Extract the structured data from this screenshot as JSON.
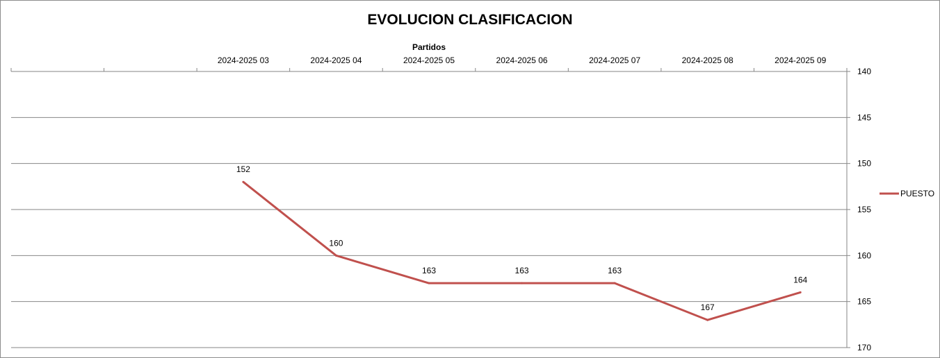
{
  "chart_data": {
    "type": "line",
    "title": "EVOLUCION CLASIFICACION",
    "xlabel": "Partidos",
    "ylabel": "",
    "y_reversed": true,
    "ylim": [
      140,
      170
    ],
    "y_ticks": [
      140,
      145,
      150,
      155,
      160,
      165,
      170
    ],
    "x_position": "top",
    "y_position": "right",
    "grid": true,
    "legend_position": "right",
    "categories": [
      "",
      "",
      "2024-2025 03",
      "2024-2025 04",
      "2024-2025 05",
      "2024-2025 06",
      "2024-2025 07",
      "2024-2025 08",
      "2024-2025 09"
    ],
    "series": [
      {
        "name": "PUESTO",
        "color": "#c0504d",
        "values": [
          null,
          null,
          152,
          160,
          163,
          163,
          163,
          167,
          164
        ]
      }
    ]
  }
}
